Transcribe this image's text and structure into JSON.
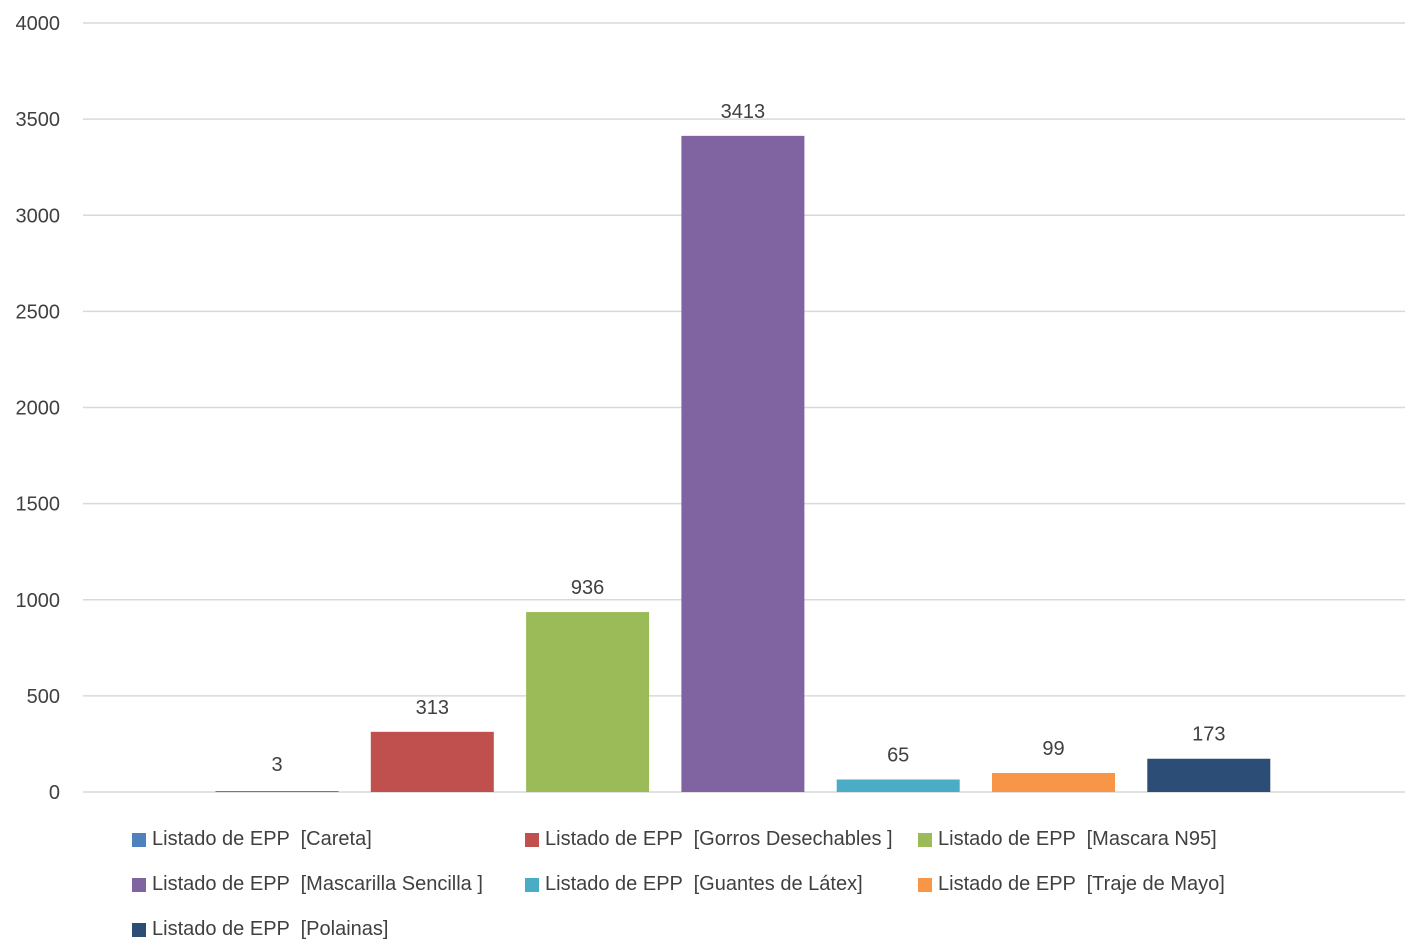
{
  "chart_data": {
    "type": "bar",
    "title": "",
    "xlabel": "",
    "ylabel": "",
    "ylim": [
      0,
      4000
    ],
    "yticks": [
      0,
      500,
      1000,
      1500,
      2000,
      2500,
      3000,
      3500,
      4000
    ],
    "grid": true,
    "legend_position": "bottom",
    "series": [
      {
        "name": "Listado de EPP  [Careta]",
        "value": 3,
        "color": "#4F81BD"
      },
      {
        "name": "Listado de EPP  [Gorros Desechables ]",
        "value": 313,
        "color": "#C0504D"
      },
      {
        "name": "Listado de EPP  [Mascara N95]",
        "value": 936,
        "color": "#9BBB59"
      },
      {
        "name": "Listado de EPP  [Mascarilla Sencilla ]",
        "value": 3413,
        "color": "#8064A2"
      },
      {
        "name": "Listado de EPP  [Guantes de Látex]",
        "value": 65,
        "color": "#4BACC6"
      },
      {
        "name": "Listado de EPP  [Traje de Mayo]",
        "value": 99,
        "color": "#F79646"
      },
      {
        "name": "Listado de EPP  [Polainas]",
        "value": 173,
        "color": "#2C4D75"
      }
    ]
  }
}
